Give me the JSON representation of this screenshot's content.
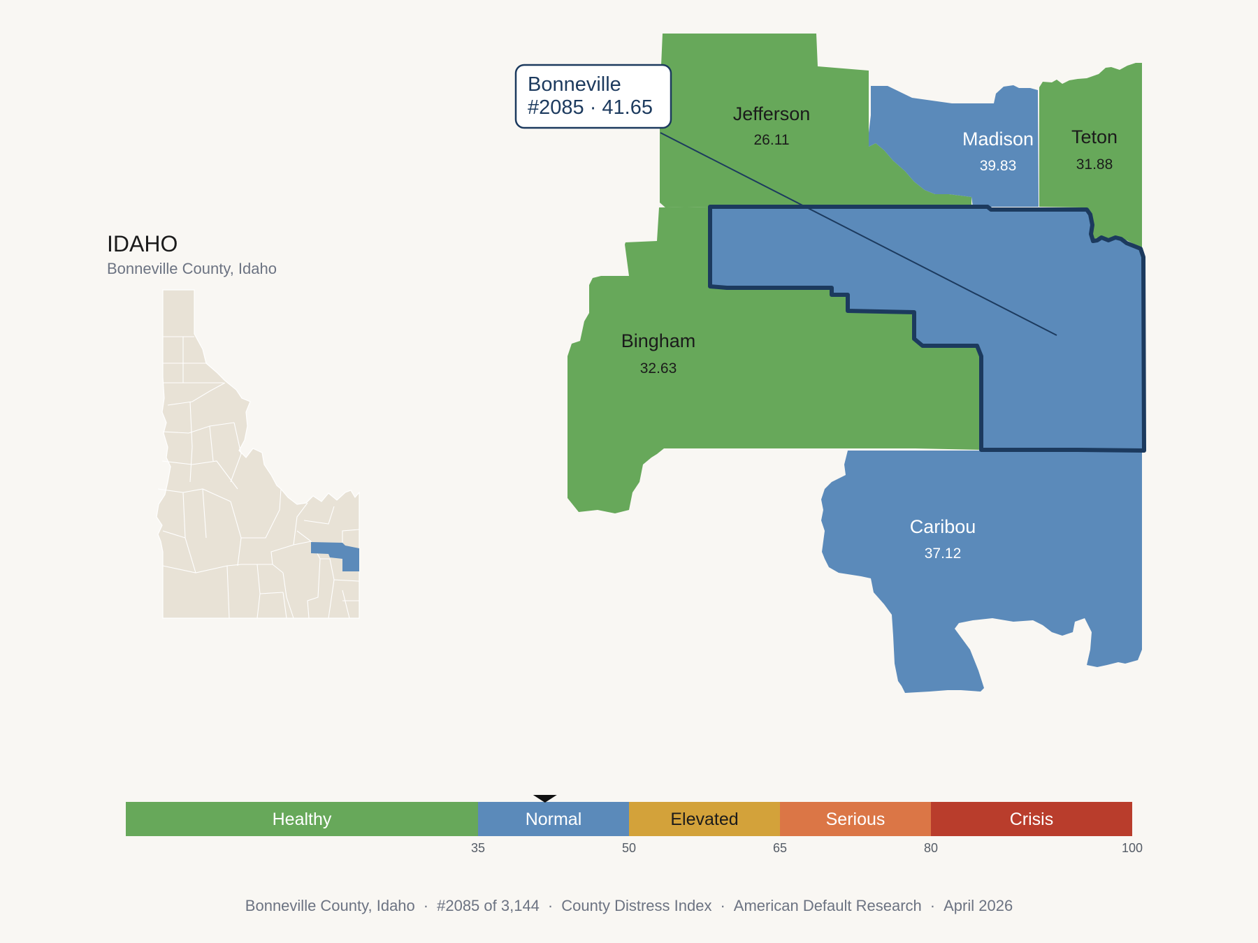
{
  "state": {
    "title": "IDAHO",
    "subtitle": "Bonneville County, Idaho"
  },
  "tooltip": {
    "line1": "Bonneville",
    "line2": "#2085 · 41.65"
  },
  "counties": {
    "jefferson": {
      "name": "Jefferson",
      "value": "26.11",
      "category": "Healthy"
    },
    "madison": {
      "name": "Madison",
      "value": "39.83",
      "category": "Normal"
    },
    "teton": {
      "name": "Teton",
      "value": "31.88",
      "category": "Healthy"
    },
    "bingham": {
      "name": "Bingham",
      "value": "32.63",
      "category": "Healthy"
    },
    "caribou": {
      "name": "Caribou",
      "value": "37.12",
      "category": "Normal"
    },
    "bonneville": {
      "name": "Bonneville",
      "value": "41.65",
      "category": "Normal",
      "selected": true
    }
  },
  "legend": {
    "bands": [
      {
        "label": "Healthy",
        "from": 0,
        "to": 35,
        "color": "#67a85a"
      },
      {
        "label": "Normal",
        "from": 35,
        "to": 50,
        "color": "#5b8aba"
      },
      {
        "label": "Elevated",
        "from": 50,
        "to": 65,
        "color": "#d3a23a"
      },
      {
        "label": "Serious",
        "from": 65,
        "to": 80,
        "color": "#db7646"
      },
      {
        "label": "Crisis",
        "from": 80,
        "to": 100,
        "color": "#b93d2c"
      }
    ],
    "ticks": [
      "35",
      "50",
      "65",
      "80",
      "100"
    ],
    "marker_value": 41.65
  },
  "colors": {
    "healthy": "#67a85a",
    "normal": "#5b8aba",
    "selected_outline": "#1c3a5e",
    "inset_fill": "#e8e2d6",
    "background": "#f9f7f3"
  },
  "footer": {
    "location": "Bonneville County, Idaho",
    "rank": "#2085 of 3,144",
    "index": "County Distress Index",
    "source": "American Default Research",
    "date": "April 2026",
    "separator": "·"
  }
}
